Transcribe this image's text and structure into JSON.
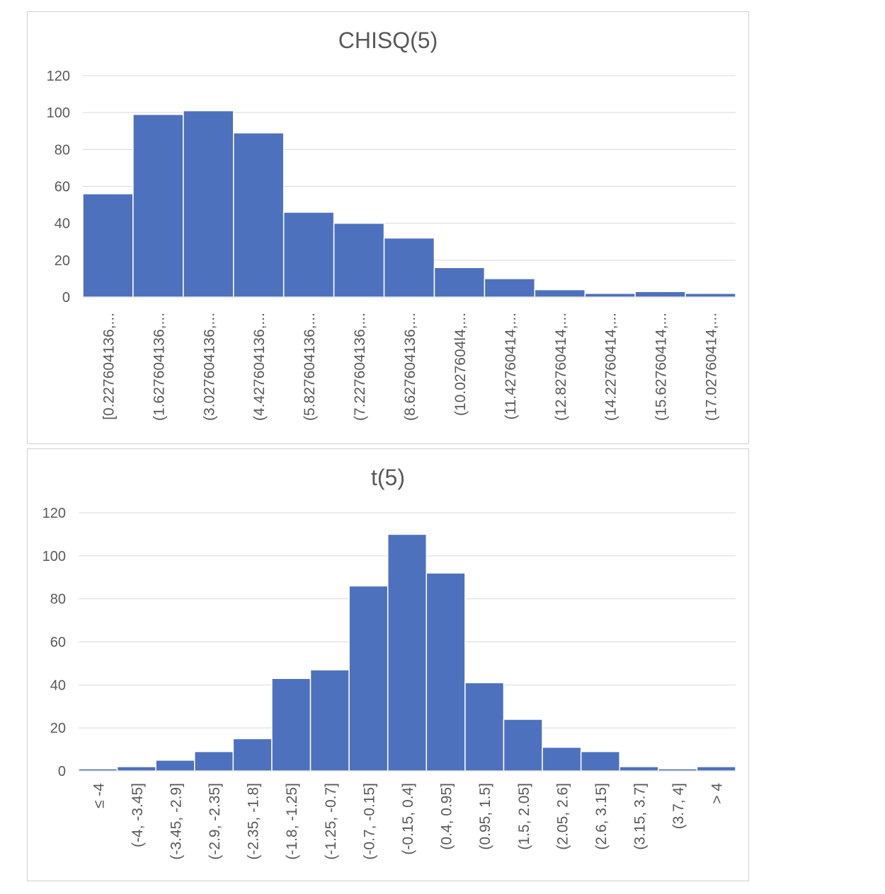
{
  "chart_data": [
    {
      "type": "bar",
      "title": "CHISQ(5)",
      "xlabel": "",
      "ylabel": "",
      "ylim": [
        0,
        120
      ],
      "yticks": [
        "0",
        "20",
        "40",
        "60",
        "80",
        "100",
        "120"
      ],
      "grid": true,
      "bar_color": "#4e71be",
      "categories": [
        "[0.227604136,...",
        "(1.627604136,...",
        "(3.027604136,...",
        "(4.427604136,...",
        "(5.827604136,...",
        "(7.227604136,...",
        "(8.627604136,...",
        "(10.027604l4,...",
        "(11.42760414,...",
        "(12.82760414,...",
        "(14.22760414,...",
        "(15.62760414,...",
        "(17.02760414,..."
      ],
      "values": [
        56,
        99,
        101,
        89,
        46,
        40,
        32,
        16,
        10,
        4,
        2,
        3,
        2
      ]
    },
    {
      "type": "bar",
      "title": "t(5)",
      "xlabel": "",
      "ylabel": "",
      "ylim": [
        0,
        120
      ],
      "yticks": [
        "0",
        "20",
        "40",
        "60",
        "80",
        "100",
        "120"
      ],
      "grid": true,
      "bar_color": "#4e71be",
      "categories": [
        "≤ -4",
        "(-4, -3.45]",
        "(-3.45, -2.9]",
        "(-2.9, -2.35]",
        "(-2.35, -1.8]",
        "(-1.8, -1.25]",
        "(-1.25, -0.7]",
        "(-0.7, -0.15]",
        "(-0.15, 0.4]",
        "(0.4, 0.95]",
        "(0.95, 1.5]",
        "(1.5, 2.05]",
        "(2.05, 2.6]",
        "(2.6, 3.15]",
        "(3.15, 3.7]",
        "(3.7, 4]",
        "> 4"
      ],
      "values": [
        1,
        2,
        5,
        9,
        15,
        43,
        47,
        86,
        110,
        92,
        41,
        24,
        11,
        9,
        2,
        1,
        2
      ]
    }
  ]
}
